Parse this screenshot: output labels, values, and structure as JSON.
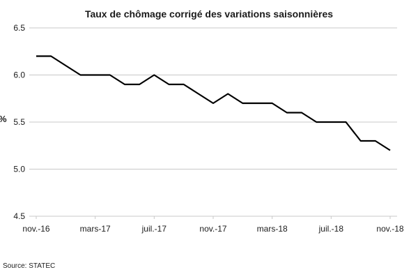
{
  "chart_data": {
    "type": "line",
    "title": "Taux de chômage corrigé des variations saisonnières",
    "ylabel": "%",
    "xlabel": "",
    "ylim": [
      4.5,
      6.5
    ],
    "yticks": [
      "4.5",
      "5.0",
      "5.5",
      "6.0",
      "6.5"
    ],
    "xtick_labels": [
      "nov.-16",
      "mars-17",
      "juil.-17",
      "nov.-17",
      "mars-18",
      "juil.-18",
      "nov.-18"
    ],
    "x": [
      "nov.-16",
      "déc.-16",
      "janv.-17",
      "févr.-17",
      "mars-17",
      "avr.-17",
      "mai-17",
      "juin-17",
      "juil.-17",
      "août-17",
      "sept.-17",
      "oct.-17",
      "nov.-17",
      "déc.-17",
      "janv.-18",
      "févr.-18",
      "mars-18",
      "avr.-18",
      "mai-18",
      "juin-18",
      "juil.-18",
      "août-18",
      "sept.-18",
      "oct.-18",
      "nov.-18"
    ],
    "series": [
      {
        "values": [
          6.2,
          6.2,
          6.1,
          6.0,
          6.0,
          6.0,
          5.9,
          5.9,
          6.0,
          5.9,
          5.9,
          5.8,
          5.7,
          5.8,
          5.7,
          5.7,
          5.7,
          5.6,
          5.6,
          5.5,
          5.5,
          5.5,
          5.3,
          5.3,
          5.2
        ]
      }
    ],
    "grid": "horizontal",
    "line_color": "#000000",
    "grid_color": "#c8c8c8"
  },
  "source": "Source: STATEC"
}
